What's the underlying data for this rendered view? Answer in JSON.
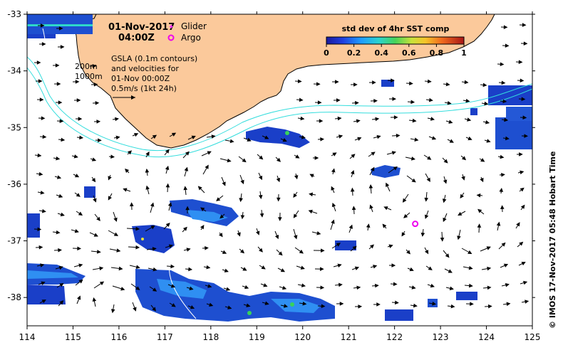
{
  "header": {
    "date": "01-Nov-2017",
    "time": "04:00Z"
  },
  "legend": {
    "glider_label": "Glider",
    "argo_label": "Argo",
    "glider_color": "#ff33ff",
    "argo_color": "#ee00ee"
  },
  "notes": {
    "line1": "GSLA (0.1m contours)",
    "line2": "and velocities for",
    "line3": "01-Nov 00:00Z",
    "line4": "0.5m/s (1kt 24h)"
  },
  "isobaths": {
    "label_200": "200m",
    "label_1000": "1000m",
    "color": "#33dddd"
  },
  "colorbar": {
    "title": "std dev of 4hr SST comp",
    "ticks": [
      "0",
      "0.2",
      "0.4",
      "0.6",
      "0.8",
      "1"
    ]
  },
  "axes": {
    "x_ticks": [
      "114",
      "115",
      "116",
      "117",
      "118",
      "119",
      "120",
      "121",
      "122",
      "123",
      "124",
      "125"
    ],
    "y_ticks": [
      "-33",
      "-34",
      "-35",
      "-36",
      "-37",
      "-38"
    ],
    "x_range": [
      114,
      125
    ],
    "y_range": [
      -38.5,
      -33
    ]
  },
  "credit": "© IMOS 17-Nov-2017 05:48 Hobart Time",
  "colors": {
    "land": "#fbc99b",
    "coast": "#000000",
    "sst_low": "#1a3fc8",
    "sst_mid": "#1e90ff"
  },
  "argo_float": {
    "lon": 122.45,
    "lat": -36.7
  }
}
